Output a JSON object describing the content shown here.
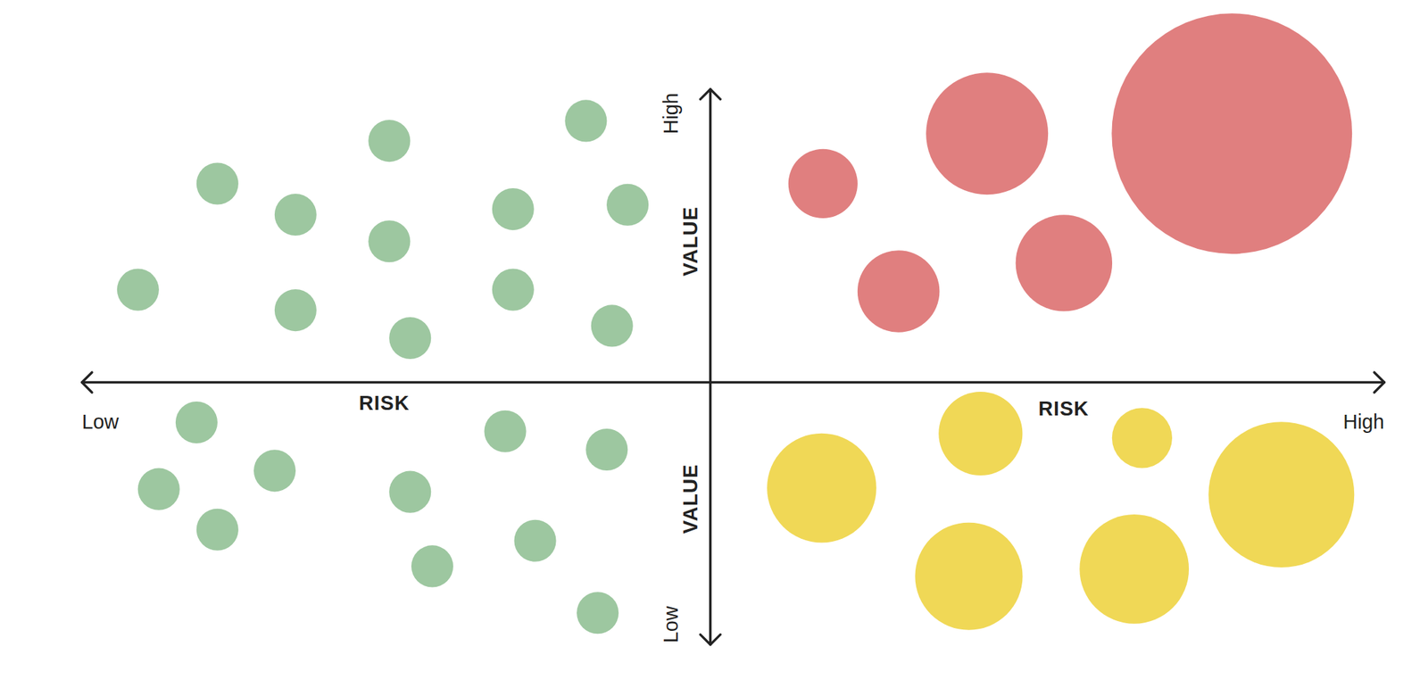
{
  "chart_data": {
    "type": "bubble",
    "x_label": "RISK",
    "y_label": "VALUE",
    "xlim": [
      0,
      100
    ],
    "ylim": [
      0,
      100
    ],
    "xticks": [
      {
        "value": 0,
        "label": "Low"
      },
      {
        "value": 100,
        "label": "High"
      }
    ],
    "yticks": [
      {
        "value": 0,
        "label": "Low"
      },
      {
        "value": 100,
        "label": "High"
      }
    ],
    "grid": false,
    "series": [
      {
        "color": "#9dc7a0",
        "x": [
          10.4,
          4.3,
          16.4,
          16.4,
          23.6,
          23.6,
          25.2,
          33.1,
          33.1,
          38.7,
          41.9,
          40.7,
          8.8,
          5.9,
          10.4,
          14.8,
          25.2,
          26.9,
          32.5,
          34.8,
          40.3,
          39.6
        ],
        "values": [
          83.0,
          63.9,
          77.4,
          60.2,
          90.7,
          72.6,
          55.2,
          78.4,
          63.9,
          94.3,
          79.2,
          57.4,
          40.0,
          28.0,
          20.7,
          31.3,
          27.5,
          14.1,
          38.4,
          18.7,
          35.1,
          5.7
        ],
        "sizes": [
          23,
          23,
          23,
          23,
          23,
          23,
          23,
          23,
          23,
          23,
          23,
          23,
          23,
          23,
          23,
          23,
          23,
          23,
          23,
          23,
          23,
          23
        ]
      },
      {
        "color": "#e07f7f",
        "x": [
          56.9,
          62.7,
          69.5,
          75.4,
          88.3
        ],
        "values": [
          83.0,
          63.6,
          92.0,
          68.7,
          92.0
        ],
        "sizes": [
          38,
          45,
          67,
          53,
          132
        ]
      },
      {
        "color": "#f0d856",
        "x": [
          56.8,
          69.0,
          68.1,
          80.8,
          81.4,
          92.1
        ],
        "values": [
          28.2,
          38.0,
          12.3,
          13.6,
          37.2,
          27.0
        ],
        "sizes": [
          60,
          46,
          59,
          60,
          33,
          80
        ]
      }
    ]
  }
}
